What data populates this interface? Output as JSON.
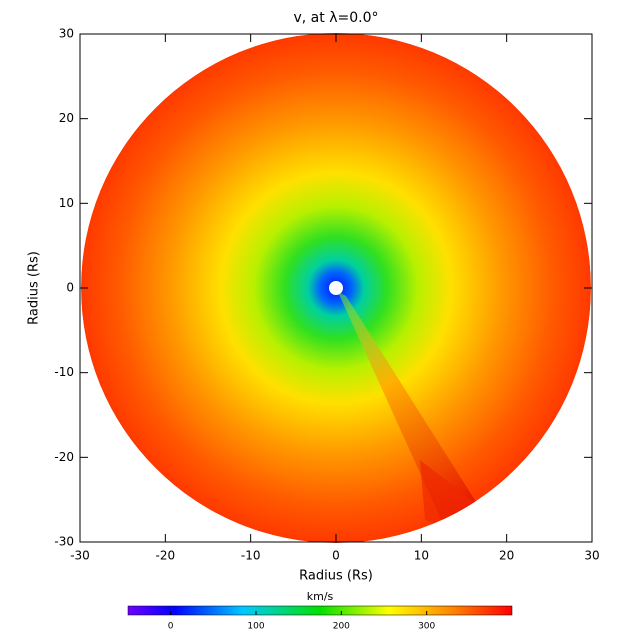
{
  "chart_data": {
    "type": "heatmap",
    "title": "v, at λ=0.0°",
    "xlabel": "Radius (Rs)",
    "ylabel": "Radius (Rs)",
    "xlim": [
      -30,
      30
    ],
    "ylim": [
      -30,
      30
    ],
    "xticks": [
      -30,
      -20,
      -10,
      0,
      10,
      20,
      30
    ],
    "yticks": [
      -30,
      -20,
      -10,
      0,
      10,
      20,
      30
    ],
    "colorbar": {
      "label": "km/s",
      "lim": [
        -50,
        400
      ],
      "ticks": [
        0,
        100,
        200,
        300
      ]
    }
  }
}
